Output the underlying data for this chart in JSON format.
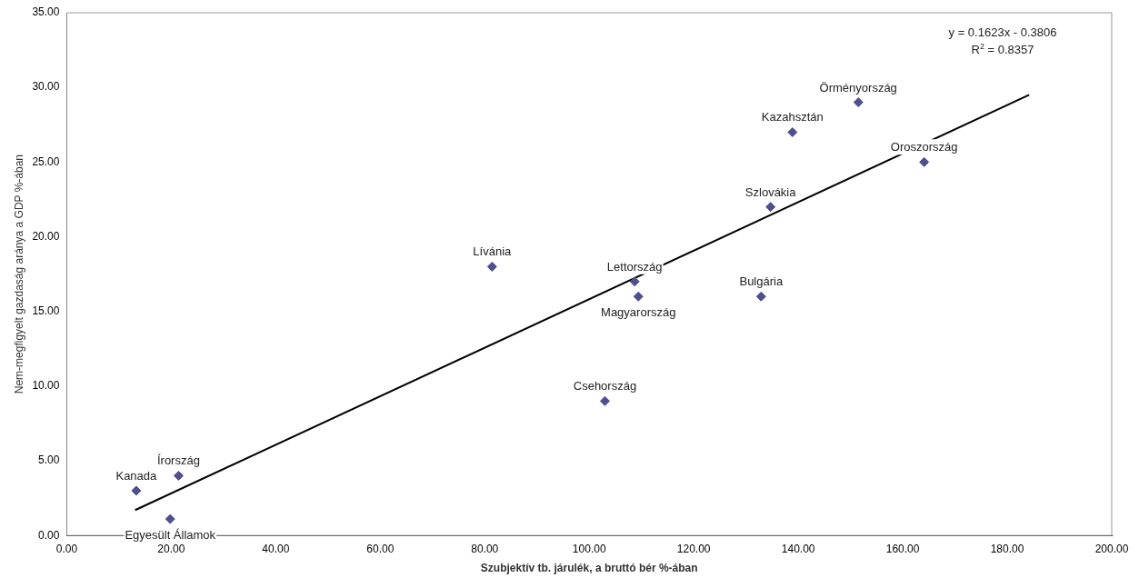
{
  "chart_data": {
    "type": "scatter",
    "xlabel": "Szubjektív tb. járulék, a bruttó bér %-ában",
    "ylabel": "Nem-megfigyelt gazdaság aránya a GDP %-ában",
    "xlim": [
      0,
      200
    ],
    "ylim": [
      0,
      35
    ],
    "xticks": [
      {
        "value": 0,
        "label": "0.00"
      },
      {
        "value": 20,
        "label": "20.00"
      },
      {
        "value": 40,
        "label": "40.00"
      },
      {
        "value": 60,
        "label": "60.00"
      },
      {
        "value": 80,
        "label": "80.00"
      },
      {
        "value": 100,
        "label": "100.00"
      },
      {
        "value": 120,
        "label": "120.00"
      },
      {
        "value": 140,
        "label": "140.00"
      },
      {
        "value": 160,
        "label": "160.00"
      },
      {
        "value": 180,
        "label": "180.00"
      },
      {
        "value": 200,
        "label": "200.00"
      }
    ],
    "yticks": [
      {
        "value": 0,
        "label": "0.00"
      },
      {
        "value": 5,
        "label": "5.00"
      },
      {
        "value": 10,
        "label": "10.00"
      },
      {
        "value": 15,
        "label": "15.00"
      },
      {
        "value": 20,
        "label": "20.00"
      },
      {
        "value": 25,
        "label": "25.00"
      },
      {
        "value": 30,
        "label": "30.00"
      },
      {
        "value": 35,
        "label": "35.00"
      }
    ],
    "grid": false,
    "legend": false,
    "series": [
      {
        "type": "scatter",
        "marker": "diamond",
        "color": "#4f4f8f",
        "x": [
          13.3,
          19.8,
          21.4,
          81.4,
          108.7,
          109.4,
          103.0,
          132.9,
          134.7,
          138.9,
          151.5,
          164.1
        ],
        "values": [
          3.0,
          1.1,
          4.0,
          18.0,
          17.0,
          16.0,
          9.0,
          16.0,
          22.0,
          27.0,
          29.0,
          25.0
        ]
      },
      {
        "type": "line",
        "marker": "none",
        "color": "#000000",
        "x": [
          13.1,
          184.2
        ],
        "values": [
          1.7,
          29.5
        ]
      }
    ],
    "annotations": [
      {
        "text": "Kanada",
        "x": 13.3,
        "y": 3.0
      },
      {
        "text": "Egyesült Államok",
        "x": 19.8,
        "y": 1.1
      },
      {
        "text": "Írország",
        "x": 21.4,
        "y": 4.0
      },
      {
        "text": "Lívánia",
        "x": 81.4,
        "y": 18.0
      },
      {
        "text": "Lettország",
        "x": 108.7,
        "y": 17.0
      },
      {
        "text": "Magyarország",
        "x": 109.4,
        "y": 16.0
      },
      {
        "text": "Csehország",
        "x": 103.0,
        "y": 9.0
      },
      {
        "text": "Bulgária",
        "x": 132.9,
        "y": 16.0
      },
      {
        "text": "Szlovákia",
        "x": 134.7,
        "y": 22.0
      },
      {
        "text": "Kazahsztán",
        "x": 138.9,
        "y": 27.0
      },
      {
        "text": "Örményország",
        "x": 151.5,
        "y": 29.0
      },
      {
        "text": "Oroszország",
        "x": 164.1,
        "y": 25.0
      },
      "y = 0.1623x - 0.3806",
      "R$^{2}$ = 0.8357"
    ]
  }
}
